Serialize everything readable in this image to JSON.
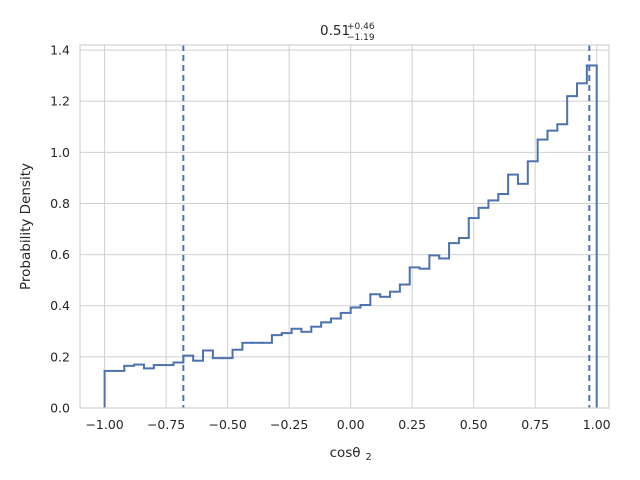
{
  "chart_data": {
    "type": "histogram",
    "title": {
      "value": "0.51",
      "upper": "+0.46",
      "lower": "−1.19"
    },
    "xlabel": {
      "main": "cosθ",
      "sub": "2"
    },
    "ylabel": "Probability Density",
    "xlim": [
      -1.1,
      1.05
    ],
    "ylim": [
      0,
      1.42
    ],
    "x_ticks": [
      -1.0,
      -0.75,
      -0.5,
      -0.25,
      0.0,
      0.25,
      0.5,
      0.75,
      1.0
    ],
    "x_tick_labels": [
      "−1.00",
      "−0.75",
      "−0.50",
      "−0.25",
      "0.00",
      "0.25",
      "0.50",
      "0.75",
      "1.00"
    ],
    "y_ticks": [
      0.0,
      0.2,
      0.4,
      0.6,
      0.8,
      1.0,
      1.2,
      1.4
    ],
    "y_tick_labels": [
      "0.0",
      "0.2",
      "0.4",
      "0.6",
      "0.8",
      "1.0",
      "1.2",
      "1.4"
    ],
    "grid": true,
    "series_color": "#4c72b0",
    "bin_edges": [
      -1.0,
      -0.96,
      -0.92,
      -0.88,
      -0.84,
      -0.8,
      -0.76,
      -0.72,
      -0.68,
      -0.64,
      -0.6,
      -0.56,
      -0.52,
      -0.48,
      -0.44,
      -0.4,
      -0.36,
      -0.32,
      -0.28,
      -0.24,
      -0.2,
      -0.16,
      -0.12,
      -0.08,
      -0.04,
      0.0,
      0.04,
      0.08,
      0.12,
      0.16,
      0.2,
      0.24,
      0.28,
      0.32,
      0.36,
      0.4,
      0.44,
      0.48,
      0.52,
      0.56,
      0.6,
      0.64,
      0.68,
      0.72,
      0.76,
      0.8,
      0.84,
      0.88,
      0.92,
      0.96,
      1.0
    ],
    "values": [
      0.145,
      0.145,
      0.165,
      0.17,
      0.155,
      0.168,
      0.168,
      0.178,
      0.205,
      0.185,
      0.225,
      0.195,
      0.195,
      0.228,
      0.255,
      0.255,
      0.255,
      0.285,
      0.293,
      0.31,
      0.298,
      0.318,
      0.335,
      0.35,
      0.372,
      0.393,
      0.403,
      0.445,
      0.435,
      0.455,
      0.483,
      0.55,
      0.545,
      0.597,
      0.585,
      0.645,
      0.665,
      0.743,
      0.783,
      0.812,
      0.837,
      0.913,
      0.877,
      0.965,
      1.05,
      1.085,
      1.11,
      1.22,
      1.27,
      1.34
    ],
    "vlines": [
      -0.68,
      0.97
    ]
  }
}
